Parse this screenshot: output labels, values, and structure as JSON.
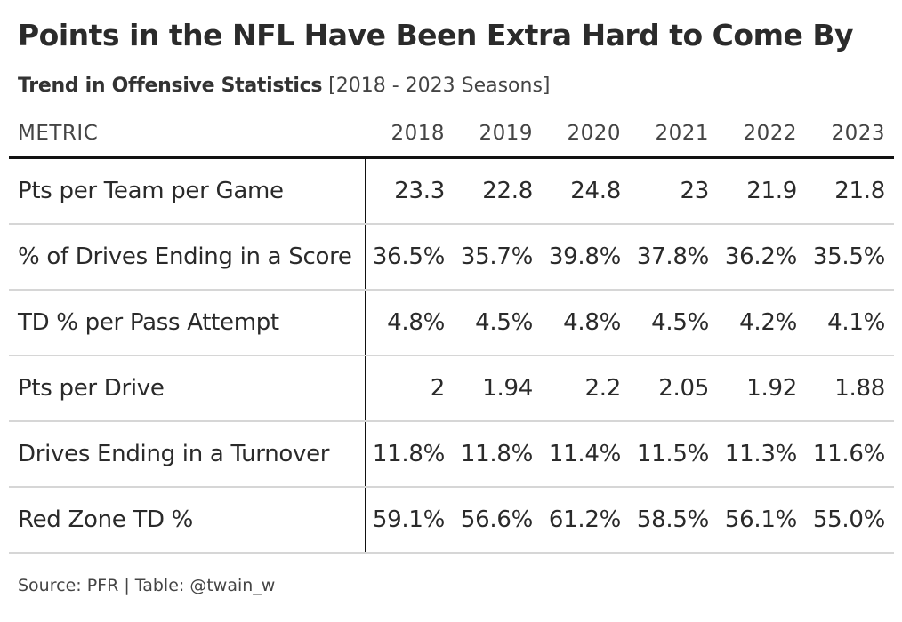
{
  "title": "Points in the NFL Have Been Extra Hard to Come By",
  "subtitle": {
    "bold": "Trend in Offensive Statistics",
    "light": "[2018 - 2023 Seasons]"
  },
  "chart_data": {
    "type": "table",
    "columns": [
      "METRIC",
      "2018",
      "2019",
      "2020",
      "2021",
      "2022",
      "2023"
    ],
    "rows": [
      {
        "metric": "Pts per Team per Game",
        "values": [
          "23.3",
          "22.8",
          "24.8",
          "23",
          "21.9",
          "21.8"
        ]
      },
      {
        "metric": "% of Drives Ending in a Score",
        "values": [
          "36.5%",
          "35.7%",
          "39.8%",
          "37.8%",
          "36.2%",
          "35.5%"
        ]
      },
      {
        "metric": "TD % per Pass Attempt",
        "values": [
          "4.8%",
          "4.5%",
          "4.8%",
          "4.5%",
          "4.2%",
          "4.1%"
        ]
      },
      {
        "metric": "Pts per Drive",
        "values": [
          "2",
          "1.94",
          "2.2",
          "2.05",
          "1.92",
          "1.88"
        ]
      },
      {
        "metric": "Drives Ending in a Turnover",
        "values": [
          "11.8%",
          "11.8%",
          "11.4%",
          "11.5%",
          "11.3%",
          "11.6%"
        ]
      },
      {
        "metric": "Red Zone TD %",
        "values": [
          "59.1%",
          "56.6%",
          "61.2%",
          "58.5%",
          "56.1%",
          "55.0%"
        ]
      }
    ]
  },
  "source": "Source: PFR | Table: @twain_w"
}
